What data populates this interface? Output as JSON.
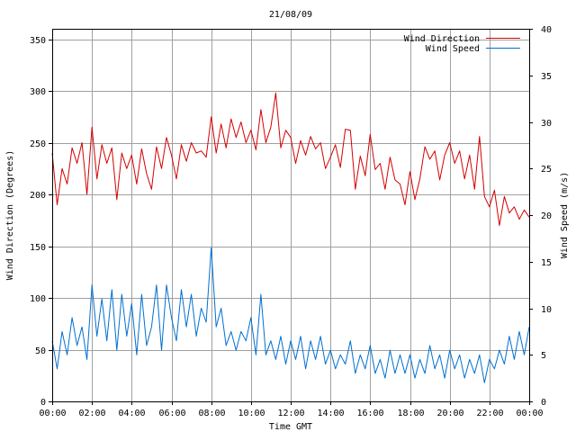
{
  "chart_data": {
    "type": "line",
    "title": "21/08/09",
    "xlabel": "Time GMT",
    "ylabel": "Wind Direction (Degrees)",
    "y2label": "Wind Speed (m/s)",
    "x_ticks": [
      "00:00",
      "02:00",
      "04:00",
      "06:00",
      "08:00",
      "10:00",
      "12:00",
      "14:00",
      "16:00",
      "18:00",
      "20:00",
      "22:00",
      "00:00"
    ],
    "y_ticks": [
      "0",
      "50",
      "100",
      "150",
      "200",
      "250",
      "300",
      "350"
    ],
    "y2_ticks": [
      "0",
      "5",
      "10",
      "15",
      "20",
      "25",
      "30",
      "35",
      "40"
    ],
    "xlim_hours": [
      0,
      24
    ],
    "ylim": [
      0,
      360
    ],
    "y2lim": [
      0,
      40
    ],
    "grid": true,
    "legend_position": "top-right",
    "colors": {
      "direction": "#d40000",
      "speed": "#0070d0"
    },
    "series": [
      {
        "name": "Wind Direction",
        "axis": "left",
        "x": [
          "00:00",
          "00:15",
          "00:30",
          "00:45",
          "01:00",
          "01:15",
          "01:30",
          "01:45",
          "02:00",
          "02:15",
          "02:30",
          "02:45",
          "03:00",
          "03:15",
          "03:30",
          "03:45",
          "04:00",
          "04:15",
          "04:30",
          "04:45",
          "05:00",
          "05:15",
          "05:30",
          "05:45",
          "06:00",
          "06:15",
          "06:30",
          "06:45",
          "07:00",
          "07:15",
          "07:30",
          "07:45",
          "08:00",
          "08:15",
          "08:30",
          "08:45",
          "09:00",
          "09:15",
          "09:30",
          "09:45",
          "10:00",
          "10:15",
          "10:30",
          "10:45",
          "11:00",
          "11:15",
          "11:30",
          "11:45",
          "12:00",
          "12:15",
          "12:30",
          "12:45",
          "13:00",
          "13:15",
          "13:30",
          "13:45",
          "14:00",
          "14:15",
          "14:30",
          "14:45",
          "15:00",
          "15:15",
          "15:30",
          "15:45",
          "16:00",
          "16:15",
          "16:30",
          "16:45",
          "17:00",
          "17:15",
          "17:30",
          "17:45",
          "18:00",
          "18:15",
          "18:30",
          "18:45",
          "19:00",
          "19:15",
          "19:30",
          "19:45",
          "20:00",
          "20:15",
          "20:30",
          "20:45",
          "21:00",
          "21:15",
          "21:30",
          "21:45",
          "22:00",
          "22:15",
          "22:30",
          "22:45",
          "23:00",
          "23:15",
          "23:30",
          "23:45",
          "24:00"
        ],
        "values": [
          240,
          190,
          225,
          210,
          245,
          230,
          250,
          200,
          265,
          215,
          248,
          230,
          245,
          195,
          240,
          225,
          238,
          210,
          244,
          220,
          205,
          246,
          225,
          255,
          238,
          215,
          248,
          232,
          250,
          240,
          242,
          236,
          275,
          240,
          268,
          245,
          273,
          255,
          270,
          250,
          262,
          243,
          282,
          250,
          265,
          298,
          245,
          262,
          255,
          230,
          252,
          238,
          256,
          244,
          250,
          225,
          236,
          248,
          226,
          263,
          262,
          205,
          237,
          218,
          258,
          224,
          230,
          205,
          236,
          214,
          210,
          190,
          222,
          195,
          215,
          246,
          234,
          242,
          214,
          238,
          250,
          230,
          242,
          215,
          238,
          205,
          256,
          198,
          188,
          204,
          170,
          198,
          182,
          188,
          176,
          185,
          178
        ]
      },
      {
        "name": "Wind Speed",
        "axis": "right",
        "x": [
          "00:00",
          "00:15",
          "00:30",
          "00:45",
          "01:00",
          "01:15",
          "01:30",
          "01:45",
          "02:00",
          "02:15",
          "02:30",
          "02:45",
          "03:00",
          "03:15",
          "03:30",
          "03:45",
          "04:00",
          "04:15",
          "04:30",
          "04:45",
          "05:00",
          "05:15",
          "05:30",
          "05:45",
          "06:00",
          "06:15",
          "06:30",
          "06:45",
          "07:00",
          "07:15",
          "07:30",
          "07:45",
          "08:00",
          "08:15",
          "08:30",
          "08:45",
          "09:00",
          "09:15",
          "09:30",
          "09:45",
          "10:00",
          "10:15",
          "10:30",
          "10:45",
          "11:00",
          "11:15",
          "11:30",
          "11:45",
          "12:00",
          "12:15",
          "12:30",
          "12:45",
          "13:00",
          "13:15",
          "13:30",
          "13:45",
          "14:00",
          "14:15",
          "14:30",
          "14:45",
          "15:00",
          "15:15",
          "15:30",
          "15:45",
          "16:00",
          "16:15",
          "16:30",
          "16:45",
          "17:00",
          "17:15",
          "17:30",
          "17:45",
          "18:00",
          "18:15",
          "18:30",
          "18:45",
          "19:00",
          "19:15",
          "19:30",
          "19:45",
          "20:00",
          "20:15",
          "20:30",
          "20:45",
          "21:00",
          "21:15",
          "21:30",
          "21:45",
          "22:00",
          "22:15",
          "22:30",
          "22:45",
          "23:00",
          "23:15",
          "23:30",
          "23:45",
          "24:00"
        ],
        "values": [
          6.5,
          3.5,
          7.5,
          5.0,
          9.0,
          6.0,
          8.0,
          4.5,
          12.5,
          7.0,
          11.0,
          6.5,
          12.0,
          5.5,
          11.5,
          7.0,
          10.5,
          5.0,
          11.5,
          6.0,
          8.0,
          12.5,
          5.5,
          12.5,
          9.0,
          6.5,
          12.0,
          8.0,
          11.5,
          7.0,
          10.0,
          8.5,
          16.5,
          8.0,
          10.0,
          6.0,
          7.5,
          5.5,
          7.5,
          6.5,
          9.0,
          5.0,
          11.5,
          5.0,
          6.5,
          4.5,
          7.0,
          4.0,
          6.5,
          4.5,
          7.0,
          3.5,
          6.5,
          4.5,
          7.0,
          4.0,
          5.5,
          3.5,
          5.0,
          4.0,
          6.5,
          3.0,
          5.0,
          3.5,
          6.0,
          3.0,
          4.5,
          2.5,
          5.5,
          3.0,
          5.0,
          3.0,
          5.0,
          2.5,
          4.5,
          3.0,
          6.0,
          3.5,
          5.0,
          2.5,
          5.5,
          3.5,
          5.0,
          2.5,
          4.5,
          3.0,
          5.0,
          2.0,
          4.5,
          3.5,
          5.5,
          4.0,
          7.0,
          4.5,
          7.5,
          5.0,
          8.0
        ]
      }
    ]
  }
}
